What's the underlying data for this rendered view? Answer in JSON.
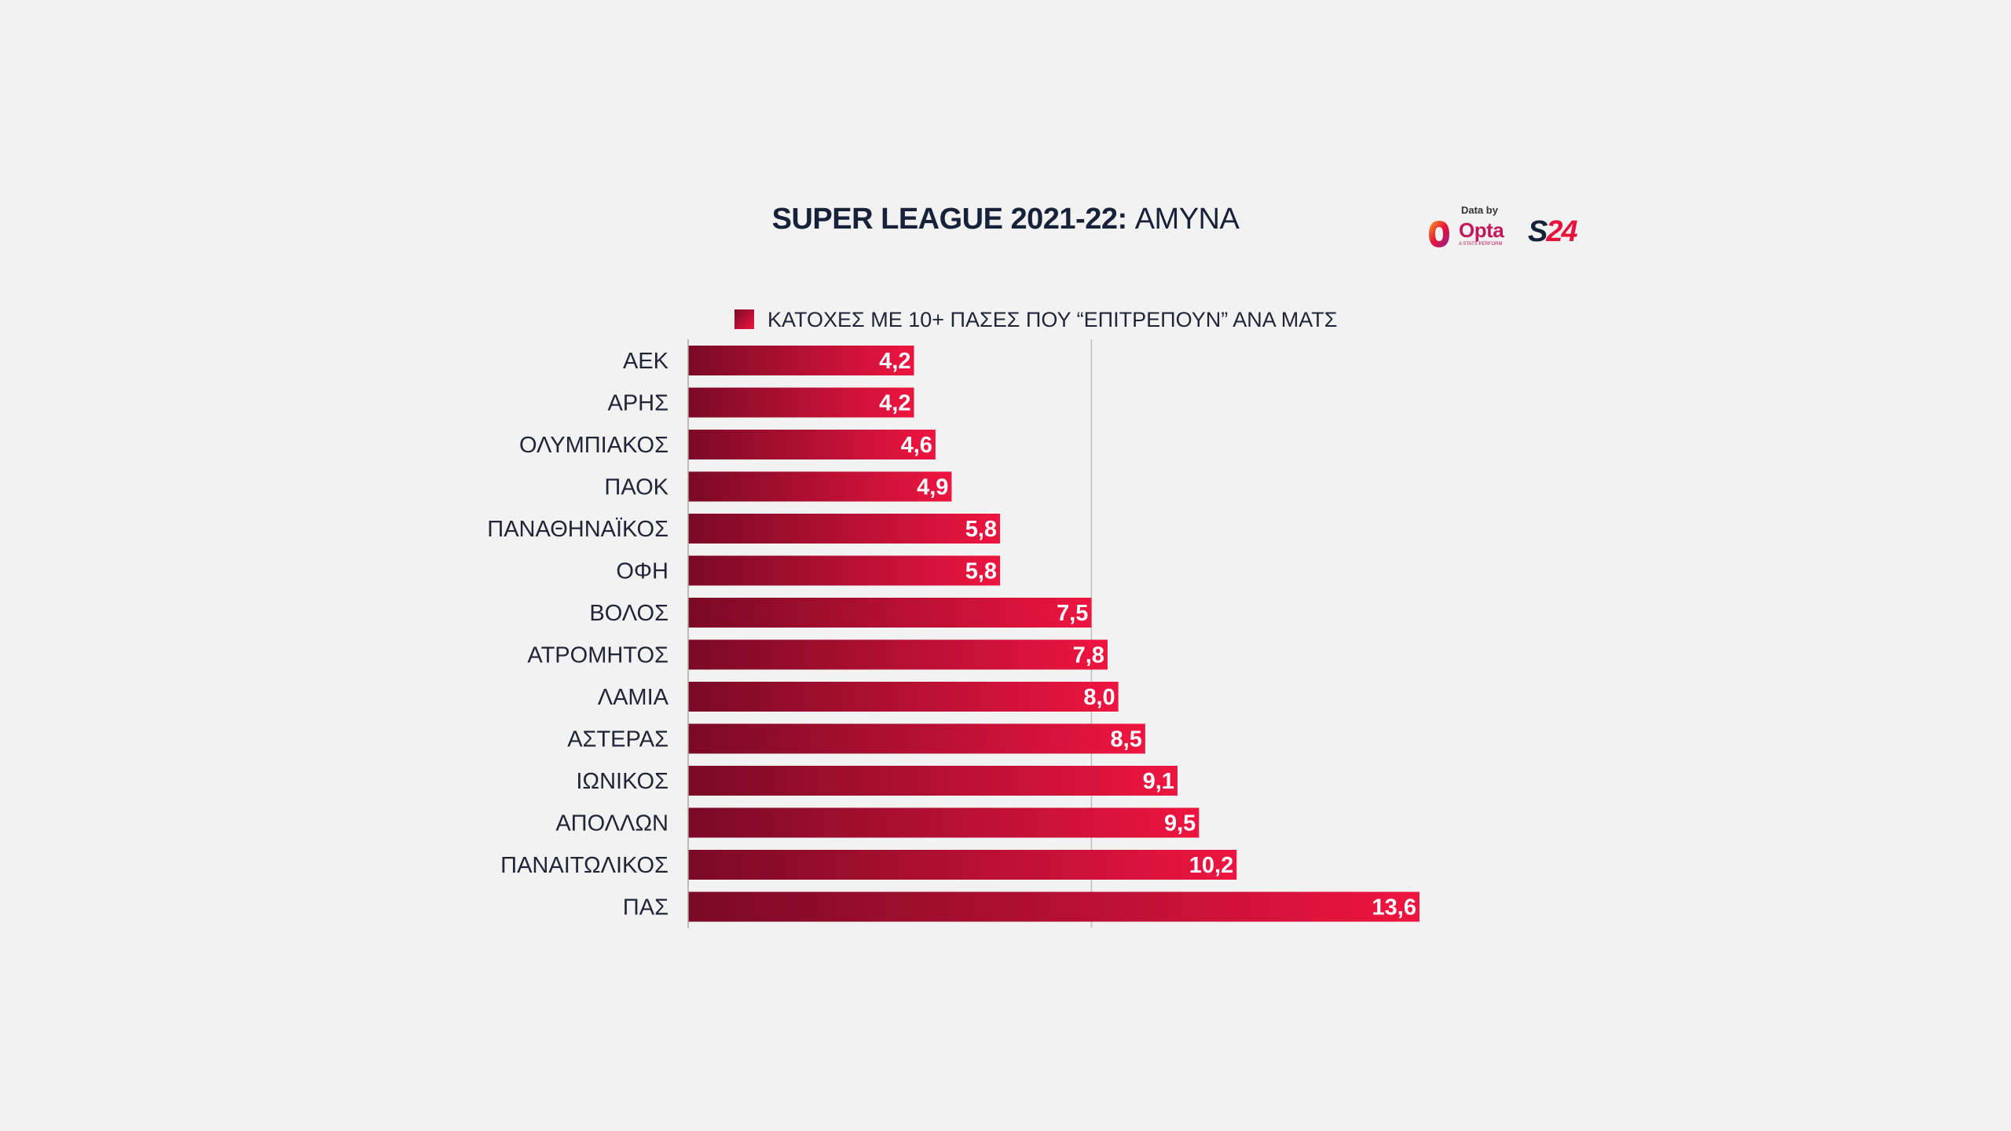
{
  "header": {
    "title_bold": "SUPER LEAGUE 2021-22:",
    "title_regular": "ΑΜΥΝΑ"
  },
  "logos": {
    "opta_caption": "Data by",
    "opta_name": "Opta",
    "opta_sub": "A STATS PERFORM",
    "s24_s": "S",
    "s24_num": "24"
  },
  "colors": {
    "bar_dark": "#7a0a26",
    "bar_light": "#ee1540",
    "title": "#17223a",
    "label": "#1f2436",
    "value_text": "#ffffff",
    "grid": "#bdbdbd"
  },
  "chart_data": {
    "type": "bar",
    "orientation": "horizontal",
    "title": "SUPER LEAGUE 2021-22: ΑΜΥΝΑ",
    "series": [
      {
        "name": "ΚΑΤΟΧΕΣ ΜΕ 10+ ΠΑΣΕΣ ΠΟΥ “ΕΠΙΤΡΕΠΟΥΝ” ΑΝΑ ΜΑΤΣ",
        "values": [
          4.2,
          4.2,
          4.6,
          4.9,
          5.8,
          5.8,
          7.5,
          7.8,
          8.0,
          8.5,
          9.1,
          9.5,
          10.2,
          13.6
        ]
      }
    ],
    "categories": [
      "ΑΕΚ",
      "ΑΡΗΣ",
      "ΟΛΥΜΠΙΑΚΟΣ",
      "ΠΑΟΚ",
      "ΠΑΝΑΘΗΝΑΪΚΟΣ",
      "ΟΦΗ",
      "ΒΟΛΟΣ",
      "ΑΤΡΟΜΗΤΟΣ",
      "ΛΑΜΙΑ",
      "ΑΣΤΕΡΑΣ",
      "ΙΩΝΙΚΟΣ",
      "ΑΠΟΛΛΩΝ",
      "ΠΑΝΑΙΤΩΛΙΚΟΣ",
      "ΠΑΣ"
    ],
    "value_labels": [
      "4,2",
      "4,2",
      "4,6",
      "4,9",
      "5,8",
      "5,8",
      "7,5",
      "7,8",
      "8,0",
      "8,5",
      "9,1",
      "9,5",
      "10,2",
      "13,6"
    ],
    "xlim": [
      0,
      13.6
    ],
    "gridlines": [
      7.5
    ],
    "legend_position": "top"
  }
}
